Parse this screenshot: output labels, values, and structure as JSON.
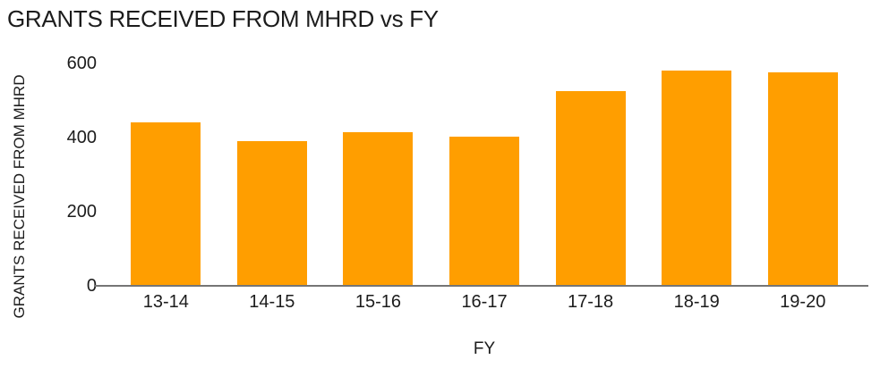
{
  "chart_data": {
    "type": "bar",
    "title": "GRANTS RECEIVED FROM MHRD vs FY",
    "xlabel": "FY",
    "ylabel": "GRANTS RECEIVED FROM MHRD",
    "categories": [
      "13-14",
      "14-15",
      "15-16",
      "16-17",
      "17-18",
      "18-19",
      "19-20"
    ],
    "values": [
      440,
      390,
      415,
      403,
      525,
      580,
      575
    ],
    "ylim": [
      0,
      600
    ],
    "yticks": [
      0,
      200,
      400,
      600
    ],
    "grid": false,
    "legend": "none",
    "bar_color": "#FF9E00",
    "axis_line_color": "#757575",
    "text_color": "#1C1C1C"
  }
}
